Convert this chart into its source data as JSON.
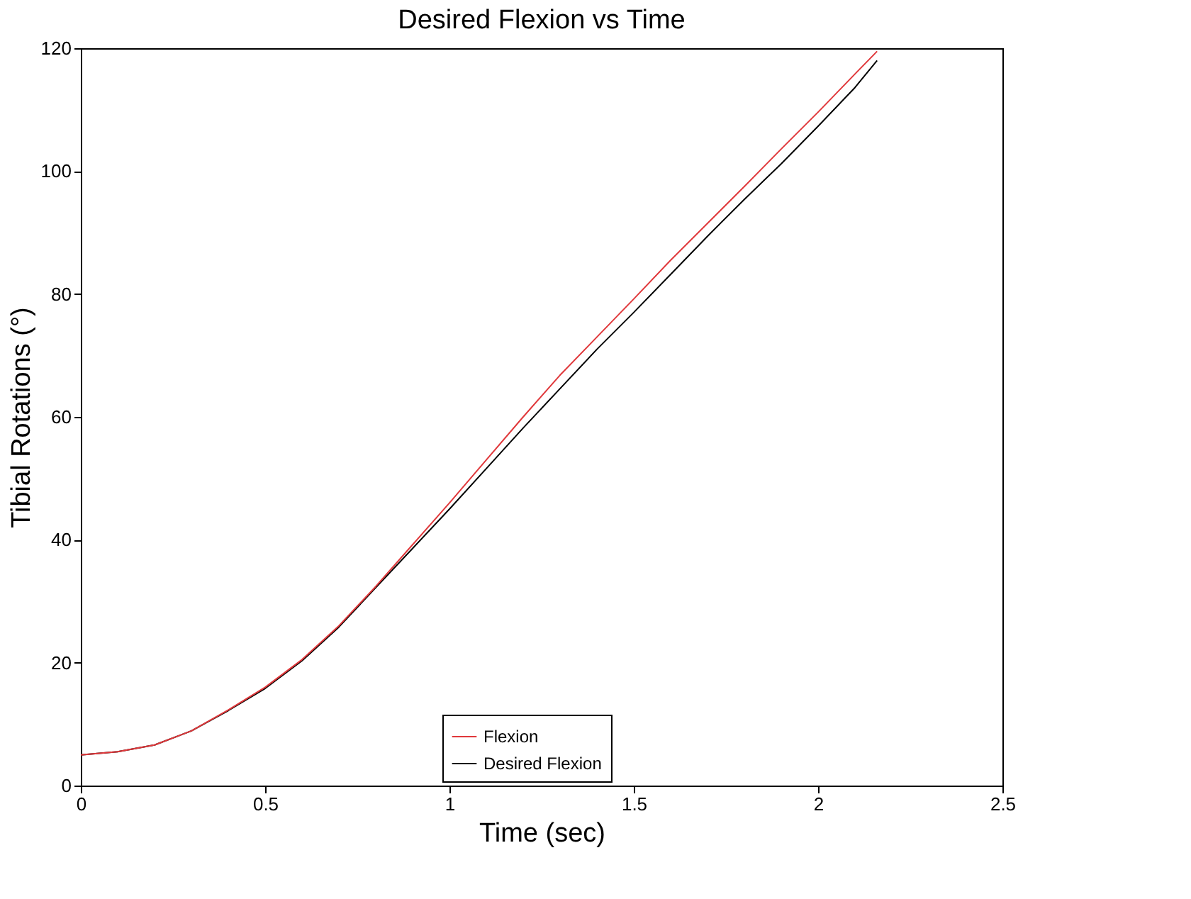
{
  "chart_data": {
    "type": "line",
    "title": "Desired Flexion vs Time",
    "xlabel": "Time (sec)",
    "ylabel": "Tibial Rotations (°)",
    "xlim": [
      0,
      2.5
    ],
    "xticks": [
      0,
      0.5,
      1,
      1.5,
      2,
      2.5
    ],
    "ylim": [
      0,
      120
    ],
    "yticks": [
      0,
      20,
      40,
      60,
      80,
      100,
      120
    ],
    "grid": false,
    "legend": "bottom",
    "marker": "none",
    "line_style": "solid",
    "series": [
      {
        "name": "Flexion",
        "color": "#e0383b",
        "x": [
          0,
          0.1,
          0.2,
          0.3,
          0.4,
          0.5,
          0.6,
          0.7,
          0.8,
          0.9,
          1.0,
          1.1,
          1.2,
          1.3,
          1.4,
          1.5,
          1.6,
          1.7,
          1.8,
          1.9,
          2.0,
          2.1,
          2.16
        ],
        "values": [
          5.0,
          5.5,
          6.6,
          8.9,
          12.3,
          16.0,
          20.5,
          26.0,
          32.4,
          39.2,
          46.0,
          53.0,
          60.0,
          66.8,
          73.0,
          79.2,
          85.5,
          91.5,
          97.5,
          103.6,
          109.6,
          115.8,
          119.5
        ]
      },
      {
        "name": "Desired Flexion",
        "color": "#000000",
        "x": [
          0,
          0.1,
          0.2,
          0.3,
          0.4,
          0.5,
          0.6,
          0.7,
          0.8,
          0.9,
          1.0,
          1.1,
          1.2,
          1.3,
          1.4,
          1.5,
          1.6,
          1.7,
          1.8,
          1.9,
          2.0,
          2.1,
          2.16
        ],
        "values": [
          5.0,
          5.5,
          6.6,
          8.9,
          12.2,
          15.8,
          20.3,
          25.8,
          32.2,
          38.6,
          45.0,
          51.6,
          58.2,
          64.6,
          71.0,
          77.0,
          83.2,
          89.4,
          95.4,
          101.2,
          107.3,
          113.6,
          118.0
        ]
      }
    ]
  }
}
